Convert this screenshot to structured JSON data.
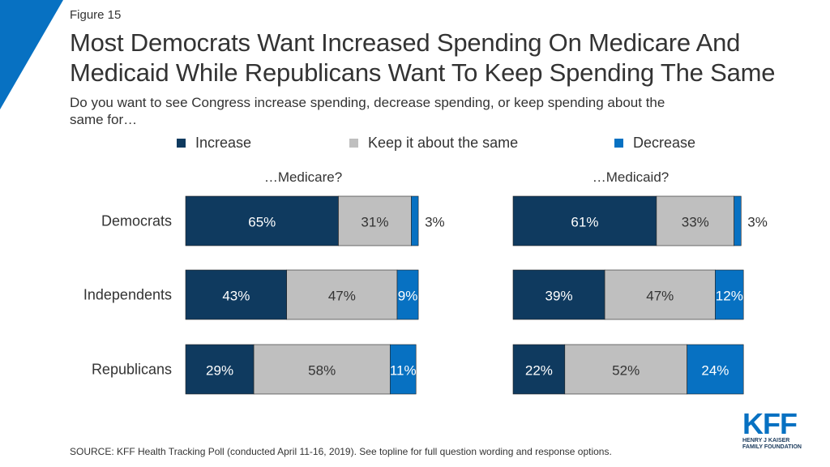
{
  "figure_label": "Figure 15",
  "title_line1": "Most Democrats Want Increased Spending On Medicare And",
  "title_line2": "Medicaid While Republicans Want To Keep Spending The Same",
  "subtitle_line1": "Do you want to see Congress increase spending, decrease spending, or keep spending about the",
  "subtitle_line2": "same for…",
  "colors": {
    "increase": "#0f3a5f",
    "same": "#bfbfbf",
    "decrease": "#0771c2",
    "accent": "#0771c2"
  },
  "legend": [
    {
      "label": "Increase",
      "color": "#0f3a5f"
    },
    {
      "label": "Keep it about the same",
      "color": "#bfbfbf"
    },
    {
      "label": "Decrease",
      "color": "#0771c2"
    }
  ],
  "chart_data": {
    "type": "bar",
    "orientation": "horizontal-stacked",
    "categories": [
      "Democrats",
      "Independents",
      "Republicans"
    ],
    "panels": [
      {
        "title": "…Medicare?",
        "series": [
          {
            "name": "Increase",
            "values": [
              65,
              43,
              29
            ],
            "labels": [
              "65%",
              "43%",
              "29%"
            ]
          },
          {
            "name": "Keep it about the same",
            "values": [
              31,
              47,
              58
            ],
            "labels": [
              "31%",
              "47%",
              "58%"
            ]
          },
          {
            "name": "Decrease",
            "values": [
              3,
              9,
              11
            ],
            "labels": [
              "3%",
              "9%",
              "11%"
            ]
          }
        ]
      },
      {
        "title": "…Medicaid?",
        "series": [
          {
            "name": "Increase",
            "values": [
              61,
              39,
              22
            ],
            "labels": [
              "61%",
              "39%",
              "22%"
            ]
          },
          {
            "name": "Keep it about the same",
            "values": [
              33,
              47,
              52
            ],
            "labels": [
              "33%",
              "47%",
              "52%"
            ]
          },
          {
            "name": "Decrease",
            "values": [
              3,
              12,
              24
            ],
            "labels": [
              "3%",
              "12%",
              "24%"
            ]
          }
        ]
      }
    ]
  },
  "source": "SOURCE: KFF Health Tracking Poll (conducted April 11-16, 2019). See topline for full question wording and response options.",
  "logo": {
    "text": "KFF",
    "sub_line1": "HENRY J KAISER",
    "sub_line2": "FAMILY FOUNDATION"
  }
}
